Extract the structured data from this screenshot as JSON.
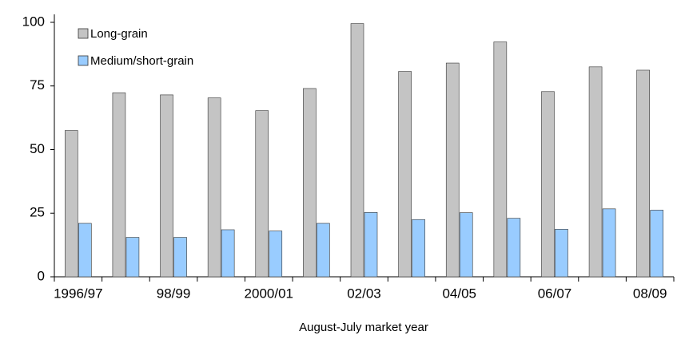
{
  "chart_data": {
    "type": "bar",
    "x_label": "August-July market year",
    "categories": [
      "1996/97",
      null,
      "98/99",
      null,
      "2000/01",
      null,
      "02/03",
      null,
      "04/05",
      null,
      "06/07",
      null,
      "08/09"
    ],
    "series": [
      {
        "name": "Long-grain",
        "color": "#c4c4c4",
        "values": [
          57.5,
          72.3,
          71.5,
          70.3,
          65.3,
          74,
          99.5,
          80.7,
          84,
          92.3,
          72.8,
          82.5,
          81.2
        ]
      },
      {
        "name": "Medium/short-grain",
        "color": "#99ccff",
        "values": [
          21,
          15.5,
          15.5,
          18.5,
          18,
          21,
          25.3,
          22.5,
          25.2,
          23,
          18.7,
          26.7,
          26.2
        ]
      }
    ],
    "ylim": [
      0,
      100
    ],
    "yticks": [
      0,
      25,
      50,
      75,
      100
    ],
    "legend": "top-left"
  }
}
